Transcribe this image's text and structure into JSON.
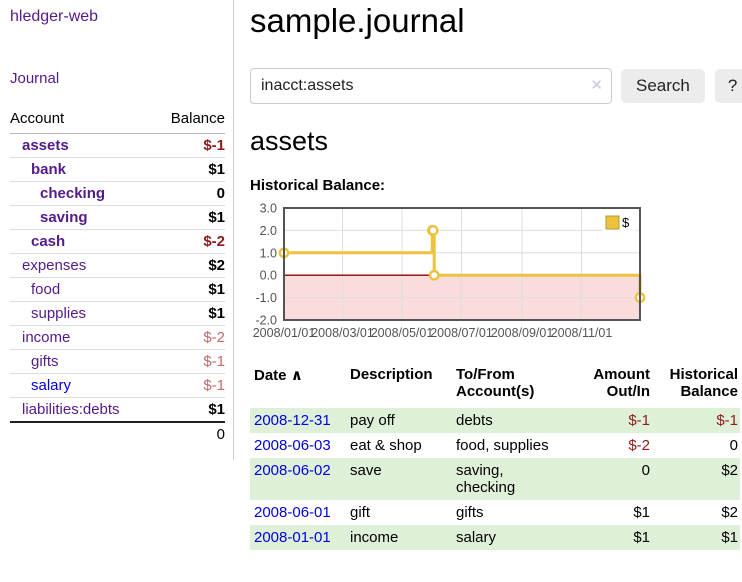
{
  "app": {
    "title": "hledger-web",
    "nav_journal": "Journal"
  },
  "sidebar": {
    "header": {
      "account": "Account",
      "balance": "Balance"
    },
    "rows": [
      {
        "name": "assets",
        "level": 1,
        "bold": true,
        "blue": false,
        "balance": "$-1",
        "balance_class": "neg"
      },
      {
        "name": "bank",
        "level": 2,
        "bold": true,
        "blue": false,
        "balance": "$1",
        "balance_class": ""
      },
      {
        "name": "checking",
        "level": 3,
        "bold": true,
        "blue": false,
        "balance": "0",
        "balance_class": ""
      },
      {
        "name": "saving",
        "level": 3,
        "bold": true,
        "blue": false,
        "balance": "$1",
        "balance_class": ""
      },
      {
        "name": "cash",
        "level": 2,
        "bold": true,
        "blue": false,
        "balance": "$-2",
        "balance_class": "neg"
      },
      {
        "name": "expenses",
        "level": 1,
        "bold": false,
        "blue": false,
        "balance": "$2",
        "balance_class": ""
      },
      {
        "name": "food",
        "level": 2,
        "bold": false,
        "blue": false,
        "balance": "$1",
        "balance_class": ""
      },
      {
        "name": "supplies",
        "level": 2,
        "bold": false,
        "blue": false,
        "balance": "$1",
        "balance_class": ""
      },
      {
        "name": "income",
        "level": 1,
        "bold": false,
        "blue": false,
        "balance": "$-2",
        "balance_class": "soft"
      },
      {
        "name": "gifts",
        "level": 2,
        "bold": false,
        "blue": false,
        "balance": "$-1",
        "balance_class": "soft"
      },
      {
        "name": "salary",
        "level": 2,
        "bold": false,
        "blue": true,
        "balance": "$-1",
        "balance_class": "soft"
      },
      {
        "name": "liabilities:debts",
        "level": 1,
        "bold": false,
        "blue": false,
        "balance": "$1",
        "balance_class": ""
      }
    ],
    "total": "0"
  },
  "main": {
    "title": "sample.journal",
    "search": {
      "value": "inacct:assets",
      "clear_icon": "✕",
      "button": "Search",
      "help_button": "?"
    },
    "account_heading": "assets",
    "chart_title": "Historical Balance:"
  },
  "chart_data": {
    "type": "line",
    "title": "Historical Balance:",
    "series": [
      {
        "name": "$",
        "color": "#edc240",
        "steps": true,
        "points": [
          {
            "date": "2008-01-01",
            "value": 1
          },
          {
            "date": "2008-06-01",
            "value": 2
          },
          {
            "date": "2008-06-02",
            "value": 2
          },
          {
            "date": "2008-06-03",
            "value": 0
          },
          {
            "date": "2008-12-31",
            "value": -1
          }
        ]
      }
    ],
    "x_min": "2008-01-01",
    "x_max": "2008-12-31",
    "ylim": [
      -2,
      3
    ],
    "y_ticks": [
      "3.0",
      "2.0",
      "1.0",
      "0.0",
      "-1.0",
      "-2.0"
    ],
    "x_ticks": [
      {
        "label": "2008/01/01",
        "date": "2008-01-01"
      },
      {
        "label": "2008/03/01",
        "date": "2008-03-01"
      },
      {
        "label": "2008/05/01",
        "date": "2008-05-01"
      },
      {
        "label": "2008/07/01",
        "date": "2008-07-01"
      },
      {
        "label": "2008/09/01",
        "date": "2008-09-01"
      },
      {
        "label": "2008/11/01",
        "date": "2008-11-01"
      }
    ],
    "grid": true,
    "negative_region_color": "#fadcdc",
    "zero_line_color": "#8b0000",
    "legend": {
      "position": "top-right",
      "label": "$",
      "swatch_color": "#edc240"
    }
  },
  "register": {
    "columns": {
      "date": "Date",
      "sort_icon": "∧",
      "description": "Description",
      "accounts": "To/From\nAccount(s)",
      "amount": "Amount\nOut/In",
      "balance": "Historical\nBalance"
    },
    "rows": [
      {
        "date": "2008-12-31",
        "description": "pay off",
        "accounts": "debts",
        "amount": "$-1",
        "amount_class": "neg",
        "balance": "$-1",
        "balance_class": "neg"
      },
      {
        "date": "2008-06-03",
        "description": "eat & shop",
        "accounts": "food, supplies",
        "amount": "$-2",
        "amount_class": "neg",
        "balance": "0",
        "balance_class": ""
      },
      {
        "date": "2008-06-02",
        "description": "save",
        "accounts": "saving,\nchecking",
        "amount": "0",
        "amount_class": "",
        "balance": "$2",
        "balance_class": ""
      },
      {
        "date": "2008-06-01",
        "description": "gift",
        "accounts": "gifts",
        "amount": "$1",
        "amount_class": "",
        "balance": "$2",
        "balance_class": ""
      },
      {
        "date": "2008-01-01",
        "description": "income",
        "accounts": "salary",
        "amount": "$1",
        "amount_class": "",
        "balance": "$1",
        "balance_class": ""
      }
    ]
  }
}
